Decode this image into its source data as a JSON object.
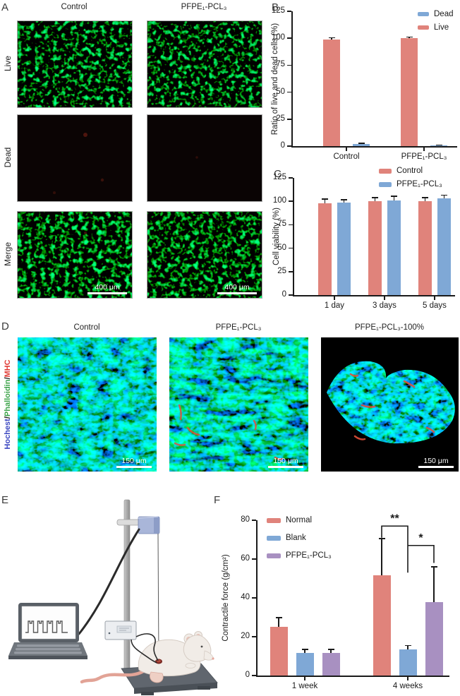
{
  "panelA": {
    "label": "A",
    "columns": [
      "Control",
      "PFPE₁-PCL₃"
    ],
    "rows": [
      "Live",
      "Dead",
      "Merge"
    ],
    "scale_bar": "400 μm"
  },
  "panelB": {
    "label": "B"
  },
  "panelC": {
    "label": "C"
  },
  "panelD": {
    "label": "D",
    "columns": [
      "Control",
      "PFPE₁-PCL₃",
      "PFPE₁-PCL₃-100%"
    ],
    "row_label_parts": [
      {
        "text": "Hochest",
        "color": "#3a46c0"
      },
      {
        "text": "/",
        "color": "#1a1a1a"
      },
      {
        "text": "Phalloidin",
        "color": "#3da44a"
      },
      {
        "text": "/",
        "color": "#1a1a1a"
      },
      {
        "text": "MHC",
        "color": "#e03a34"
      }
    ],
    "scale_bar": "150 μm"
  },
  "panelE": {
    "label": "E"
  },
  "panelF": {
    "label": "F"
  },
  "colors": {
    "live_red": "#E0837B",
    "dead_blue": "#7FA8D6",
    "purple": "#A890C1",
    "axis": "#1a1a1a"
  },
  "chart_data": [
    {
      "id": "chartB",
      "type": "bar",
      "title": "",
      "ylabel": "Ratio of live and dead cells (%)",
      "ylim": [
        0,
        125
      ],
      "yticks": [
        0,
        25,
        50,
        75,
        100,
        125
      ],
      "categories": [
        "Control",
        "PFPE₁-PCL₃"
      ],
      "series": [
        {
          "name": "Live",
          "color": "#E0837B",
          "values": [
            99,
            100
          ],
          "errors": [
            1.5,
            1
          ]
        },
        {
          "name": "Dead",
          "color": "#7FA8D6",
          "values": [
            2,
            0.8
          ],
          "errors": [
            0.6,
            0.3
          ]
        }
      ],
      "legend_order": [
        "Dead",
        "Live"
      ],
      "legend_position": "top-right",
      "grid": false
    },
    {
      "id": "chartC",
      "type": "bar",
      "title": "",
      "ylabel": "Cell viability (%)",
      "ylim": [
        0,
        125
      ],
      "yticks": [
        0,
        25,
        50,
        75,
        100,
        125
      ],
      "categories": [
        "1 day",
        "3 days",
        "5 days"
      ],
      "series": [
        {
          "name": "Control",
          "color": "#E0837B",
          "values": [
            98,
            100,
            100
          ],
          "errors": [
            4.5,
            4,
            4
          ]
        },
        {
          "name": "PFPE₁-PCL₃",
          "color": "#7FA8D6",
          "values": [
            99,
            101,
            103
          ],
          "errors": [
            2.5,
            4.5,
            3.5
          ]
        }
      ],
      "legend_order": [
        "Control",
        "PFPE₁-PCL₃"
      ],
      "legend_position": "top-center",
      "grid": false
    },
    {
      "id": "chartF",
      "type": "bar",
      "title": "",
      "ylabel": "Contractile force (g/cm²)",
      "ylim": [
        0,
        80
      ],
      "yticks": [
        0,
        20,
        40,
        60,
        80
      ],
      "categories": [
        "1 week",
        "4 weeks"
      ],
      "series": [
        {
          "name": "Normal",
          "color": "#E0837B",
          "values": [
            25,
            51.5
          ],
          "errors": [
            4.8,
            19
          ]
        },
        {
          "name": "Blank",
          "color": "#7FA8D6",
          "values": [
            11.5,
            13.5
          ],
          "errors": [
            2,
            2
          ]
        },
        {
          "name": "PFPE₁-PCL₃",
          "color": "#A890C1",
          "values": [
            11.5,
            38
          ],
          "errors": [
            2,
            18
          ]
        }
      ],
      "legend_order": [
        "Normal",
        "Blank",
        "PFPE₁-PCL₃"
      ],
      "legend_position": "top-left",
      "grid": false,
      "annotations": [
        {
          "label": "**",
          "points": [
            [
              1,
              0,
              0,
              71
            ],
            [
              1,
              0,
              0,
              77
            ],
            [
              1,
              1,
              0,
              77
            ],
            [
              1,
              1,
              0,
              53
            ]
          ]
        },
        {
          "label": "*",
          "points": [
            [
              1,
              1,
              0,
              67
            ],
            [
              1,
              2,
              0,
              67
            ],
            [
              1,
              2,
              0,
              58
            ]
          ]
        }
      ]
    }
  ]
}
